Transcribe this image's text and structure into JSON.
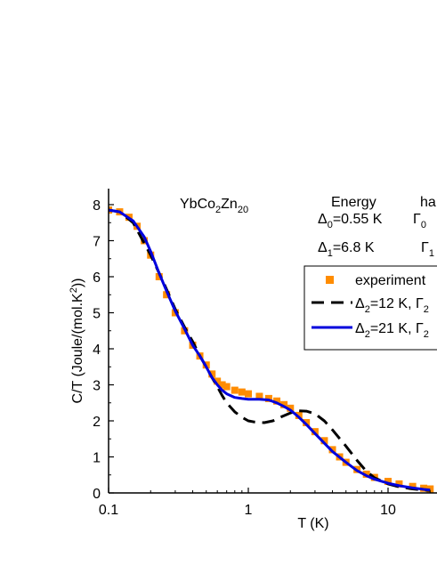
{
  "chart_data": {
    "type": "scatter",
    "title": "YbCo2Zn20",
    "title_parts": {
      "base": "YbCo",
      "sub1": "2",
      "mid": "Zn",
      "sub2": "20"
    },
    "xlabel": "T (K)",
    "ylabel": "C/T (Joule/(mol.K2))",
    "ylabel_parts": {
      "a": "C/T (Joule/(mol.K",
      "sup": "2",
      "b": "))"
    },
    "x_scale": "log",
    "xlim": [
      0.1,
      20
    ],
    "ylim": [
      0,
      8.5
    ],
    "x_ticks": [
      {
        "v": 0.1,
        "label": "0.1"
      },
      {
        "v": 1,
        "label": "1"
      },
      {
        "v": 10,
        "label": "10"
      }
    ],
    "y_ticks": [
      0,
      1,
      2,
      3,
      4,
      5,
      6,
      7,
      8
    ],
    "grid": false,
    "table": {
      "header": [
        "Energy",
        "ha"
      ],
      "rows": [
        {
          "sym": "Δ",
          "sub": "0",
          "text": "=0.55 K",
          "gamma": "Γ",
          "gsub": "0"
        },
        {
          "sym": "Δ",
          "sub": "1",
          "text": "=6.8 K",
          "gamma": "Γ",
          "gsub": "1"
        }
      ]
    },
    "legend": {
      "placement": "right",
      "entries": [
        {
          "label": "experiment"
        },
        {
          "sym": "Δ",
          "sub": "2",
          "text": "=12 K, Γ",
          "tsub": "2"
        },
        {
          "sym": "Δ",
          "sub": "2",
          "text": "=21 K, Γ",
          "tsub": "2"
        }
      ]
    },
    "series": [
      {
        "style": "orange-squares",
        "color": "#ff8c00",
        "x": [
          0.1,
          0.12,
          0.14,
          0.16,
          0.18,
          0.2,
          0.23,
          0.26,
          0.3,
          0.35,
          0.4,
          0.45,
          0.5,
          0.55,
          0.6,
          0.65,
          0.7,
          0.8,
          0.9,
          1.0,
          1.2,
          1.4,
          1.6,
          1.8,
          2.0,
          2.3,
          2.6,
          3.0,
          3.5,
          4.0,
          4.5,
          5.0,
          6.0,
          7.0,
          8.0,
          10.0,
          12.0,
          15.0,
          18.0,
          20.0
        ],
        "y": [
          7.85,
          7.8,
          7.65,
          7.4,
          7.0,
          6.6,
          6.0,
          5.5,
          5.0,
          4.5,
          4.1,
          3.8,
          3.55,
          3.3,
          3.1,
          3.0,
          2.95,
          2.85,
          2.8,
          2.75,
          2.68,
          2.62,
          2.55,
          2.45,
          2.35,
          2.15,
          1.95,
          1.7,
          1.45,
          1.2,
          1.0,
          0.85,
          0.65,
          0.52,
          0.43,
          0.32,
          0.25,
          0.18,
          0.13,
          0.11
        ]
      },
      {
        "style": "black-dashed",
        "color": "#000000",
        "x": [
          0.1,
          0.12,
          0.15,
          0.2,
          0.25,
          0.3,
          0.35,
          0.4,
          0.45,
          0.5,
          0.55,
          0.6,
          0.65,
          0.7,
          0.8,
          0.9,
          1.0,
          1.1,
          1.3,
          1.5,
          1.7,
          2.0,
          2.3,
          2.6,
          3.0,
          3.5,
          4.0,
          5.0,
          6.0,
          7.0,
          8.0,
          10.0,
          12.0,
          15.0,
          18.0,
          20.0
        ],
        "y": [
          7.85,
          7.8,
          7.5,
          6.6,
          5.8,
          5.1,
          4.6,
          4.2,
          3.8,
          3.5,
          3.2,
          2.95,
          2.7,
          2.5,
          2.25,
          2.1,
          2.0,
          1.97,
          1.95,
          2.0,
          2.1,
          2.22,
          2.28,
          2.27,
          2.2,
          2.0,
          1.75,
          1.3,
          0.9,
          0.6,
          0.42,
          0.25,
          0.17,
          0.11,
          0.08,
          0.07
        ]
      },
      {
        "style": "blue-solid",
        "color": "#0000dd",
        "x": [
          0.1,
          0.12,
          0.15,
          0.18,
          0.2,
          0.23,
          0.26,
          0.3,
          0.35,
          0.4,
          0.45,
          0.5,
          0.55,
          0.6,
          0.65,
          0.7,
          0.8,
          0.9,
          1.0,
          1.2,
          1.4,
          1.6,
          1.8,
          2.0,
          2.3,
          2.6,
          3.0,
          3.5,
          4.0,
          5.0,
          6.0,
          7.0,
          8.0,
          10.0,
          12.0,
          15.0,
          18.0,
          20.0
        ],
        "y": [
          7.85,
          7.8,
          7.55,
          7.1,
          6.7,
          6.1,
          5.6,
          5.05,
          4.55,
          4.1,
          3.8,
          3.5,
          3.2,
          3.0,
          2.85,
          2.75,
          2.65,
          2.62,
          2.6,
          2.6,
          2.58,
          2.5,
          2.4,
          2.3,
          2.1,
          1.9,
          1.65,
          1.38,
          1.15,
          0.85,
          0.62,
          0.48,
          0.38,
          0.27,
          0.2,
          0.14,
          0.1,
          0.08
        ]
      }
    ]
  }
}
